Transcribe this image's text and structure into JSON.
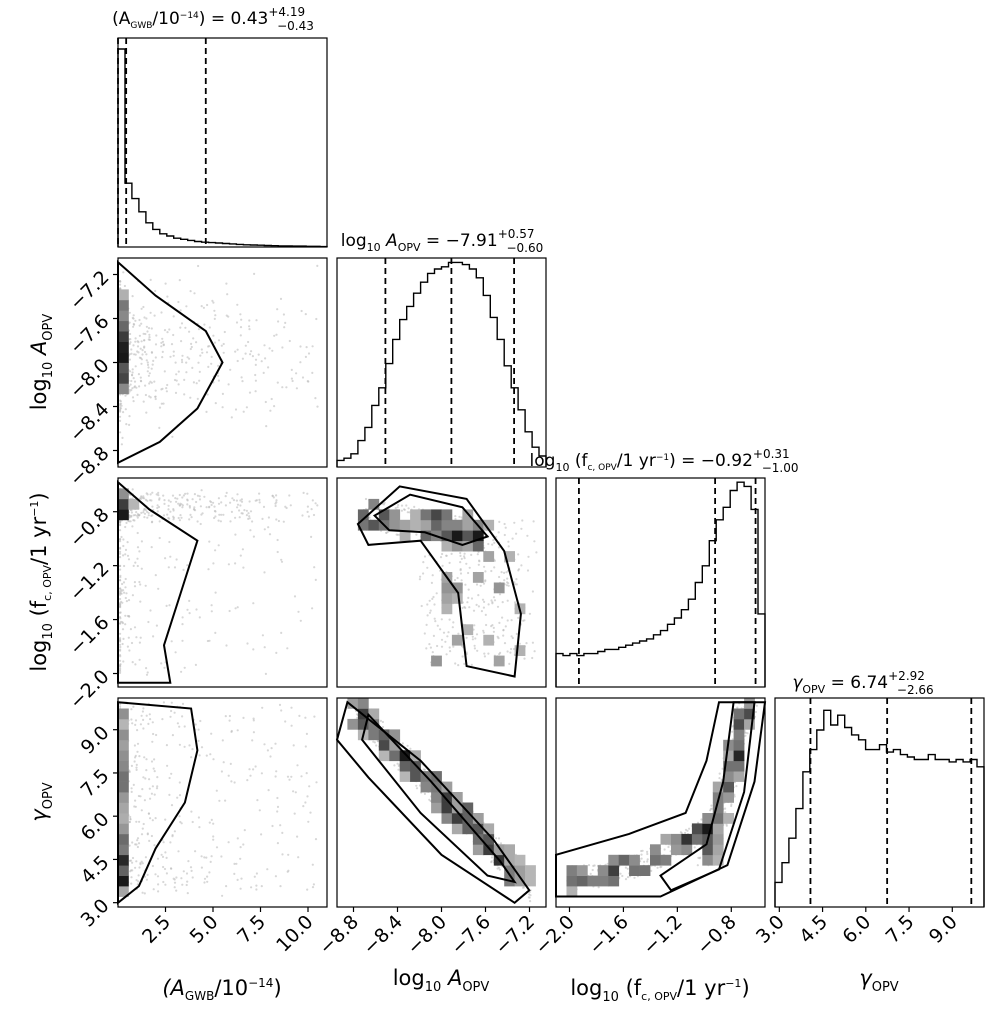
{
  "chart_data": {
    "type": "corner",
    "parameters": [
      {
        "key": "agwb",
        "title": {
          "prefix": "",
          "median": "0.43",
          "plus": "+4.19",
          "minus": "−0.43"
        },
        "axis_label": {
          "kind": "fraction",
          "num_main": "A",
          "num_sub": "GWB",
          "den": "10",
          "den_sup": "−14"
        },
        "range": [
          0,
          11
        ],
        "ticks": [
          {
            "v": 2.5,
            "label": "2.5"
          },
          {
            "v": 5.0,
            "label": "5.0"
          },
          {
            "v": 7.5,
            "label": "7.5"
          },
          {
            "v": 10.0,
            "label": "10.0"
          }
        ],
        "quantiles": [
          0.0,
          0.43,
          4.62
        ],
        "hist": [
          0.9,
          0.29,
          0.22,
          0.16,
          0.11,
          0.08,
          0.06,
          0.05,
          0.04,
          0.035,
          0.03,
          0.025,
          0.022,
          0.02,
          0.018,
          0.016,
          0.014,
          0.012,
          0.01,
          0.009,
          0.008,
          0.007,
          0.006,
          0.005,
          0.005,
          0.004,
          0.004,
          0.003,
          0.003,
          0.002
        ]
      },
      {
        "key": "aopv",
        "title": {
          "prefix": "log10",
          "median": "−7.91",
          "plus": "+0.57",
          "minus": "−0.60"
        },
        "axis_label": {
          "kind": "log10",
          "main": "A",
          "sub": "OPV"
        },
        "range": [
          -8.95,
          -7.05
        ],
        "ticks": [
          {
            "v": -8.8,
            "label": "−8.8"
          },
          {
            "v": -8.4,
            "label": "−8.4"
          },
          {
            "v": -8.0,
            "label": "−8.0"
          },
          {
            "v": -7.6,
            "label": "−7.6"
          },
          {
            "v": -7.2,
            "label": "−7.2"
          }
        ],
        "quantiles": [
          -8.51,
          -7.91,
          -7.34
        ],
        "hist": [
          0.03,
          0.04,
          0.06,
          0.12,
          0.18,
          0.28,
          0.36,
          0.47,
          0.58,
          0.67,
          0.73,
          0.79,
          0.84,
          0.88,
          0.9,
          0.91,
          0.93,
          0.93,
          0.92,
          0.9,
          0.86,
          0.78,
          0.68,
          0.58,
          0.46,
          0.36,
          0.26,
          0.16,
          0.09,
          0.05
        ]
      },
      {
        "key": "fc",
        "title": {
          "prefix": "log10",
          "median": "−0.92",
          "plus": "+0.31",
          "minus": "−1.00"
        },
        "axis_label": {
          "kind": "log10frac",
          "num_main": "f",
          "num_sub": "c, OPV",
          "den": "1 yr",
          "den_sup": "−1"
        },
        "range": [
          -2.1,
          -0.55
        ],
        "ticks": [
          {
            "v": -2.0,
            "label": "−2.0"
          },
          {
            "v": -1.6,
            "label": "−1.6"
          },
          {
            "v": -1.2,
            "label": "−1.2"
          },
          {
            "v": -0.8,
            "label": "−0.8"
          }
        ],
        "quantiles": [
          -1.93,
          -0.92,
          -0.62
        ],
        "hist": [
          0.16,
          0.15,
          0.16,
          0.15,
          0.16,
          0.16,
          0.17,
          0.18,
          0.18,
          0.19,
          0.2,
          0.21,
          0.22,
          0.23,
          0.25,
          0.27,
          0.3,
          0.33,
          0.37,
          0.42,
          0.5,
          0.58,
          0.7,
          0.8,
          0.86,
          0.94,
          0.98,
          0.96,
          0.85,
          0.35
        ]
      },
      {
        "key": "gamma",
        "title": {
          "prefix": "gamma",
          "median": "6.74",
          "plus": "+2.92",
          "minus": "−2.66"
        },
        "axis_label": {
          "kind": "gamma",
          "main": "γ",
          "sub": "OPV"
        },
        "range": [
          2.85,
          10.1
        ],
        "ticks": [
          {
            "v": 3.0,
            "label": "3.0"
          },
          {
            "v": 4.5,
            "label": "4.5"
          },
          {
            "v": 6.0,
            "label": "6.0"
          },
          {
            "v": 7.5,
            "label": "7.5"
          },
          {
            "v": 9.0,
            "label": "9.0"
          }
        ],
        "quantiles": [
          4.08,
          6.74,
          9.66
        ],
        "hist": [
          0.1,
          0.18,
          0.28,
          0.4,
          0.55,
          0.64,
          0.72,
          0.8,
          0.74,
          0.78,
          0.73,
          0.7,
          0.68,
          0.64,
          0.64,
          0.66,
          0.63,
          0.64,
          0.62,
          0.61,
          0.6,
          0.6,
          0.62,
          0.6,
          0.6,
          0.59,
          0.6,
          0.59,
          0.6,
          0.57
        ]
      }
    ],
    "histogram_max": [
      0.95,
      0.95,
      1.0,
      0.85
    ],
    "contour_levels": 2,
    "density_shading": "grayscale",
    "scatter_color": "#bdbdbd",
    "line_color": "#000000"
  }
}
